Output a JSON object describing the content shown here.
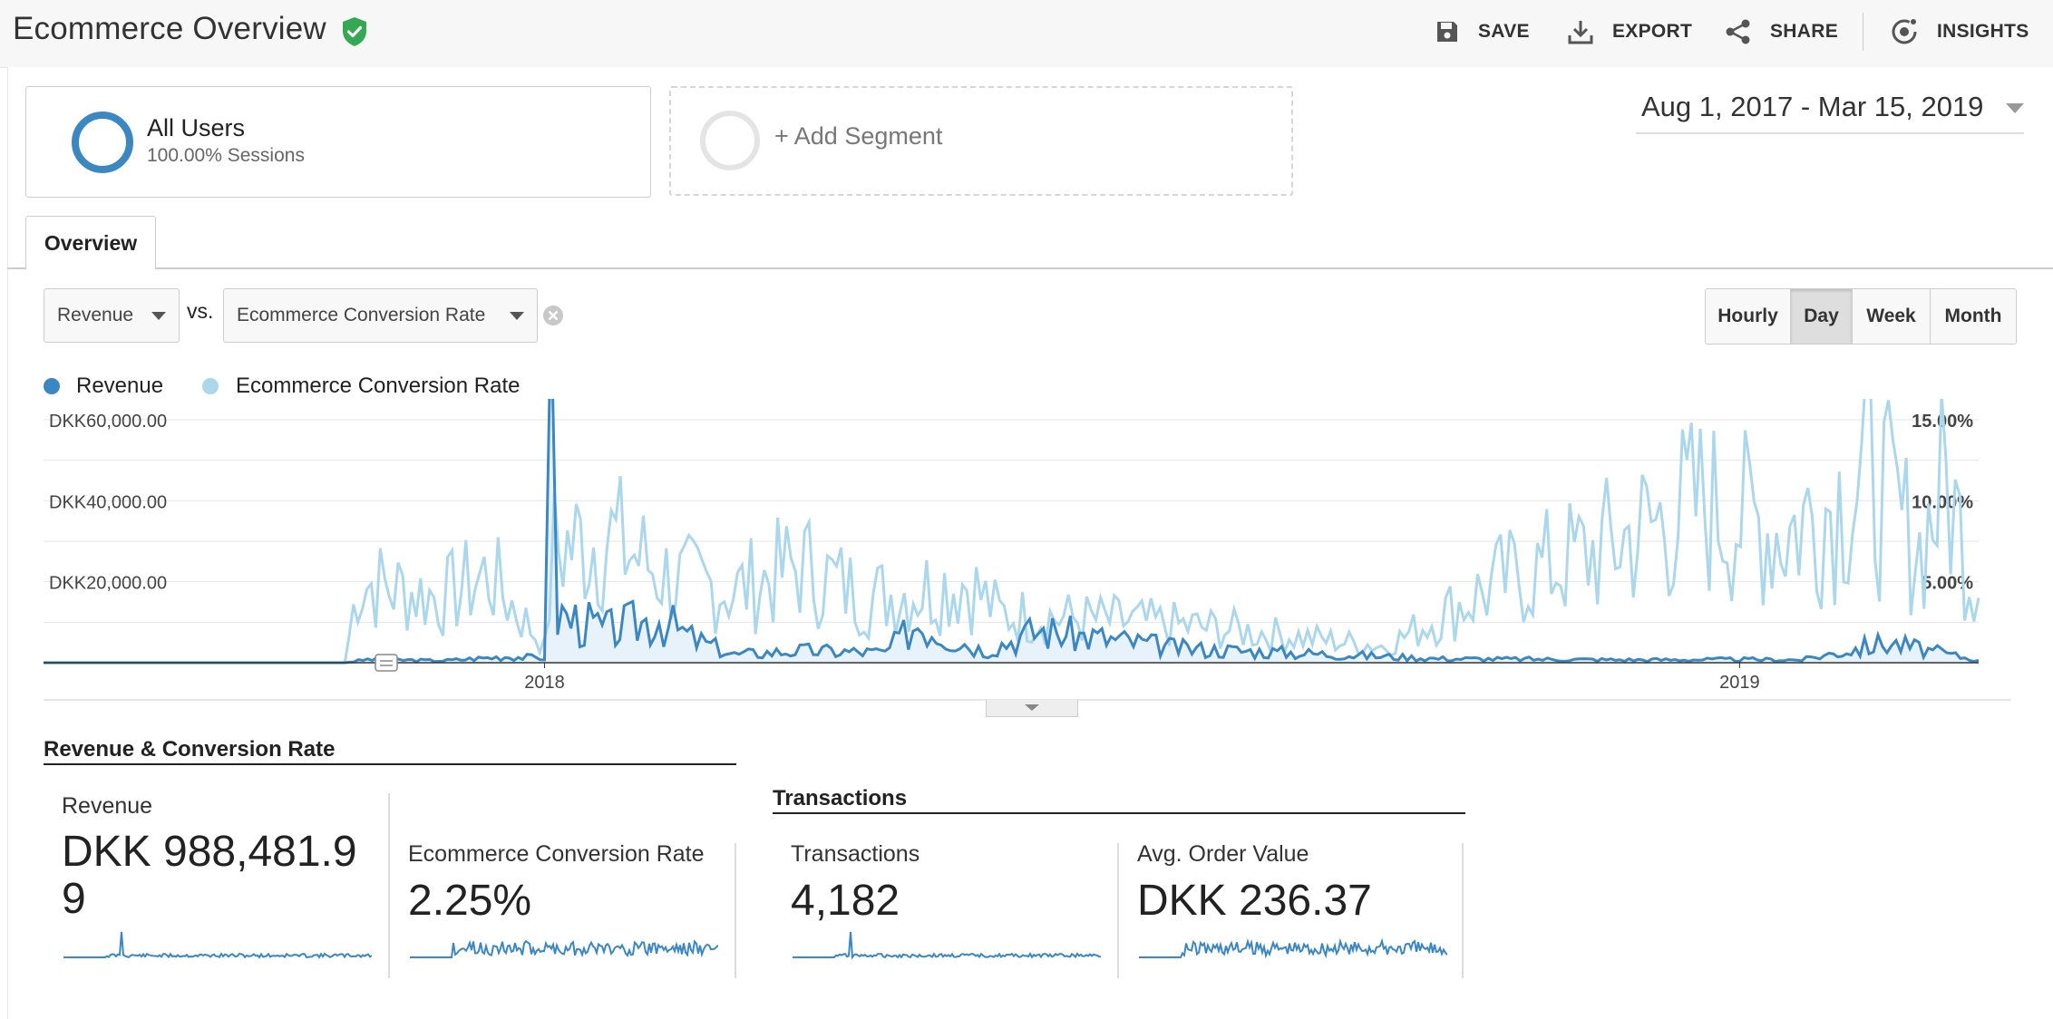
{
  "header": {
    "title": "Ecommerce Overview",
    "actions": {
      "save": "SAVE",
      "export": "EXPORT",
      "share": "SHARE",
      "insights": "INSIGHTS"
    }
  },
  "segments": {
    "all_users": {
      "name": "All Users",
      "detail": "100.00% Sessions"
    },
    "add_label": "+ Add Segment"
  },
  "date_range": "Aug 1, 2017 - Mar 15, 2019",
  "tabs": [
    {
      "label": "Overview"
    }
  ],
  "metric_selector": {
    "primary": "Revenue",
    "vs_label": "vs.",
    "secondary": "Ecommerce Conversion Rate"
  },
  "time_buttons": [
    {
      "label": "Hourly",
      "selected": false
    },
    {
      "label": "Day",
      "selected": true
    },
    {
      "label": "Week",
      "selected": false
    },
    {
      "label": "Month",
      "selected": false
    }
  ],
  "legend": [
    {
      "label": "Revenue",
      "color": "#3a87c1"
    },
    {
      "label": "Ecommerce Conversion Rate",
      "color": "#abd7ed"
    }
  ],
  "chart_data": {
    "type": "line",
    "x_range": [
      "2017-08-01",
      "2019-03-15"
    ],
    "x_ticks": [
      "2018",
      "2019"
    ],
    "y_left": {
      "label": "Revenue",
      "ticks": [
        "DKK60,000.00",
        "DKK40,000.00",
        "DKK20,000.00"
      ],
      "range": [
        0,
        60000
      ]
    },
    "y_right": {
      "label": "Ecommerce Conversion Rate",
      "ticks": [
        "15.00%",
        "10.00%",
        "5.00%"
      ],
      "range": [
        0,
        15
      ]
    },
    "grid": true,
    "series": [
      {
        "name": "Revenue",
        "color": "#3a87c1",
        "axis": "left",
        "points": [
          [
            "2017-08-01",
            0
          ],
          [
            "2017-11-01",
            0
          ],
          [
            "2017-11-08",
            800
          ],
          [
            "2017-12-01",
            500
          ],
          [
            "2017-12-20",
            1500
          ],
          [
            "2018-01-01",
            1200
          ],
          [
            "2018-01-03",
            58000
          ],
          [
            "2018-01-05",
            12000
          ],
          [
            "2018-01-20",
            8000
          ],
          [
            "2018-02-05",
            11000
          ],
          [
            "2018-02-15",
            6000
          ],
          [
            "2018-02-28",
            2000
          ],
          [
            "2018-03-20",
            3000
          ],
          [
            "2018-04-15",
            2500
          ],
          [
            "2018-04-25",
            10000
          ],
          [
            "2018-05-15",
            3000
          ],
          [
            "2018-06-01",
            8000
          ],
          [
            "2018-07-15",
            3500
          ],
          [
            "2018-09-01",
            2000
          ],
          [
            "2018-10-01",
            1000
          ],
          [
            "2018-12-01",
            700
          ],
          [
            "2019-01-01",
            800
          ],
          [
            "2019-01-20",
            700
          ],
          [
            "2019-02-15",
            5000
          ],
          [
            "2019-03-15",
            600
          ]
        ]
      },
      {
        "name": "Ecommerce Conversion Rate",
        "color": "#abd7ed",
        "axis": "right",
        "points": [
          [
            "2017-08-01",
            0
          ],
          [
            "2017-11-01",
            0
          ],
          [
            "2017-11-05",
            5
          ],
          [
            "2017-12-01",
            4
          ],
          [
            "2017-12-15",
            5.5
          ],
          [
            "2018-01-01",
            1
          ],
          [
            "2018-01-04",
            7
          ],
          [
            "2018-01-20",
            7.8
          ],
          [
            "2018-02-10",
            5
          ],
          [
            "2018-03-01",
            4.5
          ],
          [
            "2018-03-20",
            6
          ],
          [
            "2018-04-10",
            4
          ],
          [
            "2018-05-10",
            5
          ],
          [
            "2018-05-20",
            3
          ],
          [
            "2018-07-01",
            2.5
          ],
          [
            "2018-08-01",
            2
          ],
          [
            "2018-09-15",
            1
          ],
          [
            "2018-10-20",
            5
          ],
          [
            "2018-11-20",
            7
          ],
          [
            "2018-12-20",
            9.8
          ],
          [
            "2019-01-15",
            8
          ],
          [
            "2019-02-10",
            11.5
          ],
          [
            "2019-02-25",
            7
          ],
          [
            "2019-03-05",
            11.2
          ],
          [
            "2019-03-15",
            4
          ]
        ]
      }
    ]
  },
  "sections": [
    {
      "title": "Revenue & Conversion Rate",
      "metrics": [
        {
          "label": "Revenue",
          "value": "DKK 988,481.9\n9"
        },
        {
          "label": "Ecommerce Conversion Rate",
          "value": "2.25%"
        }
      ]
    },
    {
      "title": "Transactions",
      "metrics": [
        {
          "label": "Transactions",
          "value": "4,182"
        },
        {
          "label": "Avg. Order Value",
          "value": "DKK 236.37"
        }
      ]
    }
  ]
}
